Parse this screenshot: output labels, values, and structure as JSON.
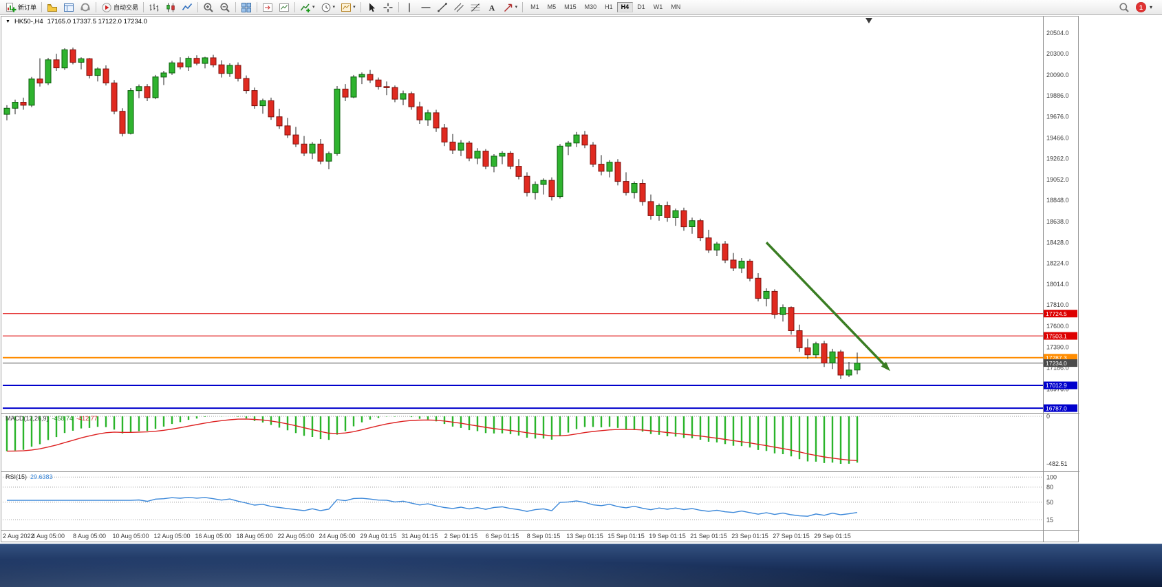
{
  "toolbar": {
    "new_order_label": "新订单",
    "auto_trading_label": "自动交易",
    "text_tool_label": "A",
    "timeframes": [
      "M1",
      "M5",
      "M15",
      "M30",
      "H1",
      "H4",
      "D1",
      "W1",
      "MN"
    ],
    "active_timeframe": "H4",
    "notification_badge": "1"
  },
  "chart": {
    "title_symbol": "HK50-,H4",
    "title_ohlc": "17165.0 17337.5 17122.0 17234.0"
  },
  "indicators": {
    "macd": {
      "name": "MACD(12,26,9)",
      "main_value": "-458.74",
      "signal_value": "-412.77"
    },
    "rsi": {
      "name": "RSI(15)",
      "value": "29.6383"
    }
  },
  "chart_data": {
    "type": "candlestick",
    "symbol": "HK50-",
    "timeframe": "H4",
    "title": "HK50-,H4",
    "current_ohlc": {
      "open": 17165.0,
      "high": 17337.5,
      "low": 17122.0,
      "close": 17234.0
    },
    "price_axis": {
      "min": 16740,
      "max": 20560,
      "ticks": [
        20504.0,
        20300.0,
        20090.0,
        19886.0,
        19676.0,
        19466.0,
        19262.0,
        19052.0,
        18848.0,
        18638.0,
        18428.0,
        18224.0,
        18014.0,
        17810.0,
        17600.0,
        17390.0,
        17186.0,
        16976.0
      ]
    },
    "hlines": [
      {
        "price": 17724.5,
        "label": "17724.5",
        "color": "#dd0000",
        "width": 1
      },
      {
        "price": 17503.1,
        "label": "17503.1",
        "color": "#dd0000",
        "width": 1
      },
      {
        "price": 17287.3,
        "label": "17287.3",
        "color": "#ff8c00",
        "width": 2
      },
      {
        "price": 17234.0,
        "label": "17234.0",
        "color": "#4a4a4a",
        "width": 1
      },
      {
        "price": 17012.9,
        "label": "17012.9",
        "color": "#0000cc",
        "width": 2
      },
      {
        "price": 16787.0,
        "label": "16787.0",
        "color": "#0000cc",
        "width": 2
      }
    ],
    "arrow": {
      "from_index": 92,
      "from_price": 18430,
      "to_index": 107,
      "to_price": 17155,
      "color": "#3a7d23"
    },
    "candles": [
      [
        19700,
        19790,
        19640,
        19760
      ],
      [
        19760,
        19845,
        19700,
        19820
      ],
      [
        19820,
        19865,
        19745,
        19790
      ],
      [
        19790,
        20070,
        19770,
        20050
      ],
      [
        20050,
        20255,
        19975,
        20010
      ],
      [
        20010,
        20260,
        19990,
        20240
      ],
      [
        20240,
        20300,
        20130,
        20160
      ],
      [
        20160,
        20355,
        20140,
        20340
      ],
      [
        20340,
        20360,
        20195,
        20215
      ],
      [
        20215,
        20265,
        20145,
        20250
      ],
      [
        20250,
        20258,
        20055,
        20085
      ],
      [
        20085,
        20165,
        20025,
        20150
      ],
      [
        20150,
        20185,
        19985,
        20010
      ],
      [
        20010,
        20040,
        19700,
        19730
      ],
      [
        19730,
        19760,
        19480,
        19510
      ],
      [
        19510,
        19960,
        19500,
        19935
      ],
      [
        19935,
        19995,
        19860,
        19975
      ],
      [
        19975,
        20000,
        19830,
        19865
      ],
      [
        19865,
        20090,
        19850,
        20070
      ],
      [
        20070,
        20130,
        19990,
        20110
      ],
      [
        20110,
        20230,
        20090,
        20210
      ],
      [
        20210,
        20265,
        20145,
        20170
      ],
      [
        20170,
        20275,
        20130,
        20255
      ],
      [
        20255,
        20285,
        20185,
        20205
      ],
      [
        20205,
        20270,
        20155,
        20260
      ],
      [
        20260,
        20290,
        20165,
        20190
      ],
      [
        20190,
        20235,
        20065,
        20105
      ],
      [
        20105,
        20205,
        20070,
        20185
      ],
      [
        20185,
        20215,
        20025,
        20055
      ],
      [
        20055,
        20085,
        19905,
        19935
      ],
      [
        19935,
        19965,
        19755,
        19785
      ],
      [
        19785,
        19855,
        19705,
        19835
      ],
      [
        19835,
        19865,
        19645,
        19675
      ],
      [
        19675,
        19755,
        19555,
        19585
      ],
      [
        19585,
        19665,
        19465,
        19495
      ],
      [
        19495,
        19575,
        19375,
        19405
      ],
      [
        19405,
        19485,
        19285,
        19315
      ],
      [
        19315,
        19425,
        19255,
        19405
      ],
      [
        19405,
        19455,
        19205,
        19235
      ],
      [
        19235,
        19330,
        19155,
        19310
      ],
      [
        19310,
        19980,
        19290,
        19950
      ],
      [
        19950,
        20000,
        19830,
        19870
      ],
      [
        19870,
        20090,
        19860,
        20070
      ],
      [
        20070,
        20115,
        20000,
        20095
      ],
      [
        20095,
        20140,
        20010,
        20040
      ],
      [
        20040,
        20065,
        19945,
        19975
      ],
      [
        19975,
        20025,
        19890,
        19965
      ],
      [
        19965,
        19985,
        19820,
        19850
      ],
      [
        19850,
        19935,
        19790,
        19905
      ],
      [
        19905,
        19925,
        19745,
        19775
      ],
      [
        19775,
        19825,
        19605,
        19645
      ],
      [
        19645,
        19745,
        19585,
        19715
      ],
      [
        19715,
        19745,
        19525,
        19565
      ],
      [
        19565,
        19605,
        19385,
        19425
      ],
      [
        19425,
        19505,
        19305,
        19345
      ],
      [
        19345,
        19445,
        19285,
        19415
      ],
      [
        19415,
        19435,
        19235,
        19265
      ],
      [
        19265,
        19365,
        19205,
        19335
      ],
      [
        19335,
        19355,
        19155,
        19185
      ],
      [
        19185,
        19305,
        19125,
        19285
      ],
      [
        19285,
        19335,
        19205,
        19315
      ],
      [
        19315,
        19335,
        19155,
        19185
      ],
      [
        19185,
        19255,
        19055,
        19085
      ],
      [
        19085,
        19125,
        18885,
        18925
      ],
      [
        18925,
        19035,
        18855,
        19005
      ],
      [
        19005,
        19065,
        18905,
        19045
      ],
      [
        19045,
        19075,
        18845,
        18885
      ],
      [
        18885,
        19405,
        18865,
        19385
      ],
      [
        19385,
        19435,
        19295,
        19415
      ],
      [
        19415,
        19525,
        19375,
        19495
      ],
      [
        19495,
        19535,
        19365,
        19395
      ],
      [
        19395,
        19425,
        19175,
        19205
      ],
      [
        19205,
        19295,
        19095,
        19135
      ],
      [
        19135,
        19245,
        19075,
        19225
      ],
      [
        19225,
        19255,
        18995,
        19035
      ],
      [
        19035,
        19125,
        18895,
        18925
      ],
      [
        18925,
        19035,
        18865,
        19015
      ],
      [
        19015,
        19055,
        18795,
        18835
      ],
      [
        18835,
        18905,
        18655,
        18695
      ],
      [
        18695,
        18815,
        18645,
        18795
      ],
      [
        18795,
        18835,
        18635,
        18675
      ],
      [
        18675,
        18765,
        18595,
        18745
      ],
      [
        18745,
        18775,
        18545,
        18585
      ],
      [
        18585,
        18675,
        18515,
        18645
      ],
      [
        18645,
        18665,
        18445,
        18475
      ],
      [
        18475,
        18555,
        18325,
        18355
      ],
      [
        18355,
        18435,
        18295,
        18415
      ],
      [
        18415,
        18445,
        18225,
        18255
      ],
      [
        18255,
        18325,
        18145,
        18175
      ],
      [
        18175,
        18275,
        18125,
        18245
      ],
      [
        18245,
        18265,
        18045,
        18075
      ],
      [
        18075,
        18125,
        17845,
        17875
      ],
      [
        17875,
        17975,
        17795,
        17945
      ],
      [
        17945,
        17965,
        17675,
        17715
      ],
      [
        17715,
        17815,
        17645,
        17785
      ],
      [
        17785,
        17795,
        17515,
        17555
      ],
      [
        17555,
        17615,
        17345,
        17385
      ],
      [
        17385,
        17475,
        17275,
        17315
      ],
      [
        17315,
        17445,
        17285,
        17425
      ],
      [
        17425,
        17455,
        17195,
        17235
      ],
      [
        17235,
        17375,
        17175,
        17345
      ],
      [
        17345,
        17365,
        17075,
        17115
      ],
      [
        17115,
        17245,
        17095,
        17165
      ],
      [
        17165,
        17337.5,
        17122,
        17234
      ]
    ],
    "x_labels": [
      {
        "i": 0,
        "t": "2 Aug 2022"
      },
      {
        "i": 5,
        "t": "4 Aug 05:00"
      },
      {
        "i": 10,
        "t": "8 Aug 05:00"
      },
      {
        "i": 15,
        "t": "10 Aug 05:00"
      },
      {
        "i": 20,
        "t": "12 Aug 05:00"
      },
      {
        "i": 25,
        "t": "16 Aug 05:00"
      },
      {
        "i": 30,
        "t": "18 Aug 05:00"
      },
      {
        "i": 35,
        "t": "22 Aug 05:00"
      },
      {
        "i": 40,
        "t": "24 Aug 05:00"
      },
      {
        "i": 45,
        "t": "29 Aug 01:15"
      },
      {
        "i": 50,
        "t": "31 Aug 01:15"
      },
      {
        "i": 55,
        "t": "2 Sep 01:15"
      },
      {
        "i": 60,
        "t": "6 Sep 01:15"
      },
      {
        "i": 65,
        "t": "8 Sep 01:15"
      },
      {
        "i": 70,
        "t": "13 Sep 01:15"
      },
      {
        "i": 75,
        "t": "15 Sep 01:15"
      },
      {
        "i": 80,
        "t": "19 Sep 01:15"
      },
      {
        "i": 85,
        "t": "21 Sep 01:15"
      },
      {
        "i": 90,
        "t": "23 Sep 01:15"
      },
      {
        "i": 95,
        "t": "27 Sep 01:15"
      },
      {
        "i": 100,
        "t": "29 Sep 01:15"
      }
    ],
    "macd": {
      "name": "MACD(12,26,9)",
      "main": -458.74,
      "signal": -412.77,
      "axis_labels": [
        "0",
        "-482.51"
      ],
      "min": -482.51,
      "histogram_color": "#2ab42a",
      "signal_color": "#dd2222"
    },
    "rsi": {
      "name": "RSI(15)",
      "value": 29.6383,
      "period": 15,
      "levels": [
        100,
        80,
        50,
        15
      ],
      "line_color": "#3a87d9"
    },
    "colors": {
      "up": "#2fb32f",
      "up_stroke": "#0a5c0a",
      "down": "#e02a20",
      "down_stroke": "#7c100c",
      "wick": "#222222"
    }
  }
}
